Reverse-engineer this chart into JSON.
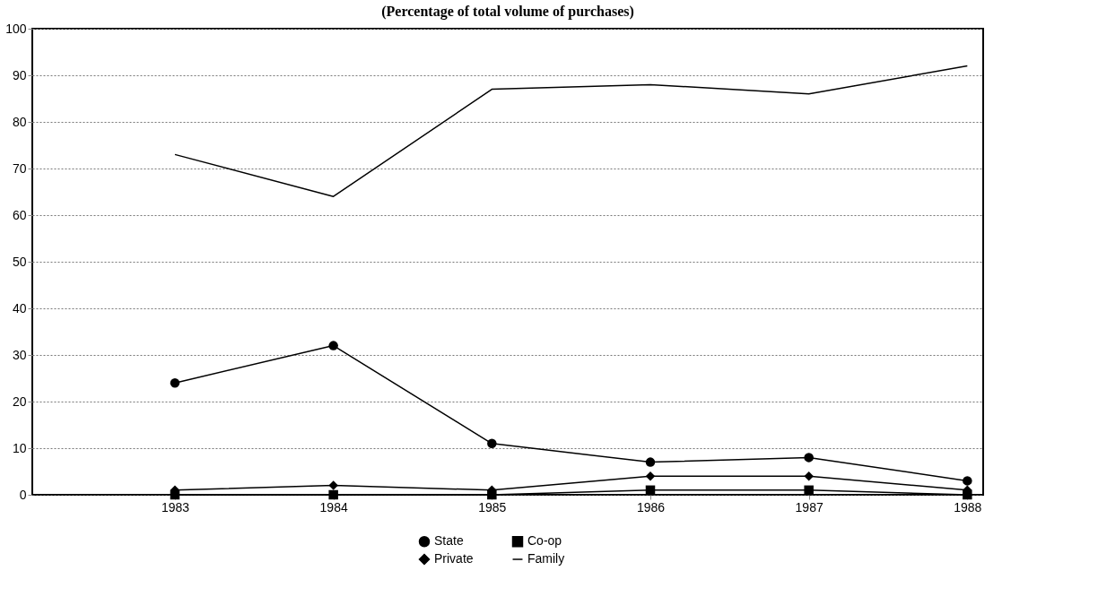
{
  "chart_data": {
    "type": "line",
    "title": "(Percentage of total volume of purchases)",
    "categories": [
      "1983",
      "1984",
      "1985",
      "1986",
      "1987",
      "1988"
    ],
    "series": [
      {
        "name": "State",
        "color": "#000000",
        "marker": "circle",
        "values": [
          24,
          32,
          11,
          7,
          8,
          3
        ]
      },
      {
        "name": "Private",
        "color": "#000000",
        "marker": "diamond",
        "values": [
          1,
          2,
          1,
          4,
          4,
          1
        ]
      },
      {
        "name": "Co-op",
        "color": "#000000",
        "marker": "square",
        "values": [
          0,
          0,
          0,
          1,
          1,
          0
        ]
      },
      {
        "name": "Family",
        "color": "#000000",
        "marker": "none",
        "values": [
          73,
          64,
          87,
          88,
          86,
          92
        ]
      }
    ],
    "ylim": [
      0,
      100
    ],
    "yticks": [
      0,
      10,
      20,
      30,
      40,
      50,
      60,
      70,
      80,
      90,
      100
    ],
    "grid": "y",
    "legend": "bottom",
    "line_style": "solid"
  }
}
